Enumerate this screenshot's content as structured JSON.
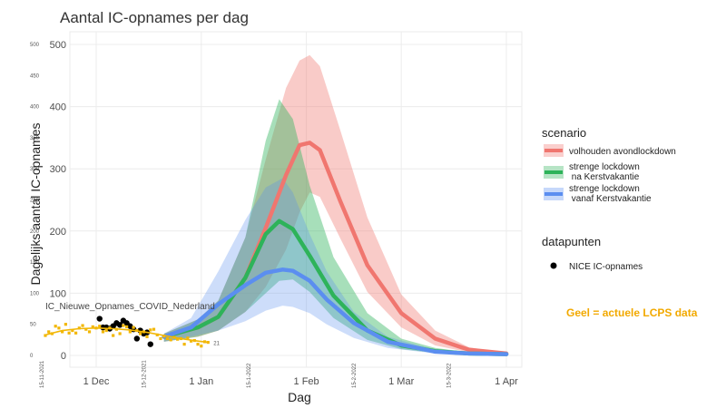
{
  "chart_data": {
    "type": "area",
    "title": "Aantal IC-opnames per dag",
    "xlabel": "Dag",
    "ylabel": "Dagelijks aantal IC-opnames",
    "ylim": [
      0,
      520
    ],
    "y_ticks": [
      0,
      100,
      200,
      300,
      400,
      500
    ],
    "x_ticks": [
      {
        "day": 0,
        "label": "1 Dec"
      },
      {
        "day": 31,
        "label": "1 Jan"
      },
      {
        "day": 62,
        "label": "1 Feb"
      },
      {
        "day": 90,
        "label": "1 Mar"
      },
      {
        "day": 121,
        "label": "1 Apr"
      }
    ],
    "grid": true,
    "legend_position": "right",
    "legend": {
      "scenario_title": "scenario",
      "datapunten_title": "datapunten"
    },
    "series": [
      {
        "name": "volhouden avondlockdown",
        "color": "#f0766f",
        "x": [
          20,
          30,
          36,
          44,
          50,
          56,
          60,
          63,
          66,
          72,
          80,
          90,
          100,
          110,
          121
        ],
        "y": [
          30,
          45,
          62,
          125,
          205,
          290,
          338,
          342,
          330,
          248,
          145,
          68,
          27,
          9,
          3
        ],
        "lower": [
          22,
          30,
          40,
          70,
          110,
          170,
          230,
          262,
          255,
          188,
          102,
          45,
          16,
          5,
          1
        ],
        "upper": [
          35,
          58,
          88,
          190,
          315,
          430,
          474,
          483,
          465,
          362,
          222,
          98,
          40,
          13,
          4
        ]
      },
      {
        "name": "strenge lockdown\nna Kerstvakantie",
        "color": "#2eb35a",
        "x": [
          20,
          30,
          36,
          44,
          50,
          54,
          58,
          63,
          70,
          80,
          90,
          100,
          110,
          121
        ],
        "y": [
          30,
          45,
          62,
          125,
          195,
          216,
          203,
          160,
          96,
          40,
          16,
          7,
          3,
          2
        ],
        "lower": [
          22,
          30,
          40,
          70,
          100,
          120,
          122,
          102,
          60,
          25,
          10,
          4,
          2,
          1
        ],
        "upper": [
          35,
          58,
          88,
          190,
          345,
          412,
          380,
          273,
          158,
          68,
          27,
          12,
          5,
          3
        ]
      },
      {
        "name": "strenge lockdown\nvanaf Kerstvakantie",
        "color": "#5b8ef0",
        "x": [
          20,
          28,
          36,
          44,
          50,
          55,
          58,
          63,
          68,
          76,
          86,
          100,
          110,
          121
        ],
        "y": [
          30,
          45,
          82,
          113,
          133,
          138,
          136,
          120,
          90,
          52,
          22,
          6,
          3,
          2
        ],
        "lower": [
          22,
          30,
          40,
          55,
          72,
          80,
          78,
          68,
          50,
          28,
          12,
          3,
          1,
          1
        ],
        "upper": [
          35,
          60,
          135,
          218,
          270,
          285,
          262,
          195,
          135,
          70,
          30,
          9,
          4,
          2
        ]
      }
    ],
    "datapunten": {
      "name": "NICE IC-opnames",
      "color": "#000000",
      "x": [
        1,
        2,
        3,
        4,
        5,
        6,
        7,
        8,
        9,
        10,
        11,
        12,
        13,
        14,
        15,
        16
      ],
      "y": [
        59,
        45,
        45,
        43,
        47,
        52,
        49,
        56,
        52,
        47,
        42,
        27,
        40,
        35,
        37,
        18
      ]
    },
    "overlay": {
      "label": "IC_Nieuwe_Opnames_COVID_Nederland",
      "end_value_label": "21",
      "note": "Geel = actuele LCPS data",
      "color": "#f2b705",
      "x_ticks": [
        "15-11-2021",
        "15-12-2021",
        "15-1-2022",
        "15-2-2022",
        "15-3-2022"
      ],
      "y_ticks": [
        "0",
        "50",
        "100",
        "150",
        "200",
        "250",
        "300",
        "350",
        "400",
        "450",
        "500"
      ],
      "points": [
        {
          "x": -15,
          "y": 32
        },
        {
          "x": -14,
          "y": 38
        },
        {
          "x": -13,
          "y": 35
        },
        {
          "x": -12,
          "y": 47
        },
        {
          "x": -11,
          "y": 44
        },
        {
          "x": -10,
          "y": 38
        },
        {
          "x": -9,
          "y": 50
        },
        {
          "x": -8,
          "y": 36
        },
        {
          "x": -7,
          "y": 40
        },
        {
          "x": -6,
          "y": 36
        },
        {
          "x": -5,
          "y": 44
        },
        {
          "x": -4,
          "y": 48
        },
        {
          "x": -3,
          "y": 42
        },
        {
          "x": -2,
          "y": 38
        },
        {
          "x": -1,
          "y": 46
        },
        {
          "x": 0,
          "y": 44
        },
        {
          "x": 1,
          "y": 47
        },
        {
          "x": 2,
          "y": 38
        },
        {
          "x": 3,
          "y": 40
        },
        {
          "x": 4,
          "y": 44
        },
        {
          "x": 5,
          "y": 32
        },
        {
          "x": 6,
          "y": 42
        },
        {
          "x": 7,
          "y": 35
        },
        {
          "x": 8,
          "y": 48
        },
        {
          "x": 9,
          "y": 46
        },
        {
          "x": 10,
          "y": 38
        },
        {
          "x": 11,
          "y": 45
        },
        {
          "x": 12,
          "y": 40
        },
        {
          "x": 13,
          "y": 35
        },
        {
          "x": 14,
          "y": 38
        },
        {
          "x": 15,
          "y": 30
        },
        {
          "x": 16,
          "y": 41
        },
        {
          "x": 17,
          "y": 42
        },
        {
          "x": 18,
          "y": 33
        },
        {
          "x": 19,
          "y": 27
        },
        {
          "x": 20,
          "y": 31
        },
        {
          "x": 21,
          "y": 27
        },
        {
          "x": 22,
          "y": 25
        },
        {
          "x": 23,
          "y": 29
        },
        {
          "x": 24,
          "y": 26
        },
        {
          "x": 25,
          "y": 27
        },
        {
          "x": 26,
          "y": 18
        },
        {
          "x": 27,
          "y": 28
        },
        {
          "x": 28,
          "y": 23
        },
        {
          "x": 29,
          "y": 24
        },
        {
          "x": 30,
          "y": 18
        },
        {
          "x": 31,
          "y": 15
        },
        {
          "x": 32,
          "y": 22
        },
        {
          "x": 33,
          "y": 21
        }
      ],
      "trend": {
        "x": [
          -15,
          -10,
          -5,
          0,
          5,
          10,
          15,
          20,
          25,
          30,
          33
        ],
        "y": [
          33,
          40,
          43,
          44,
          43,
          41,
          37,
          32,
          27,
          23,
          21
        ]
      }
    }
  }
}
